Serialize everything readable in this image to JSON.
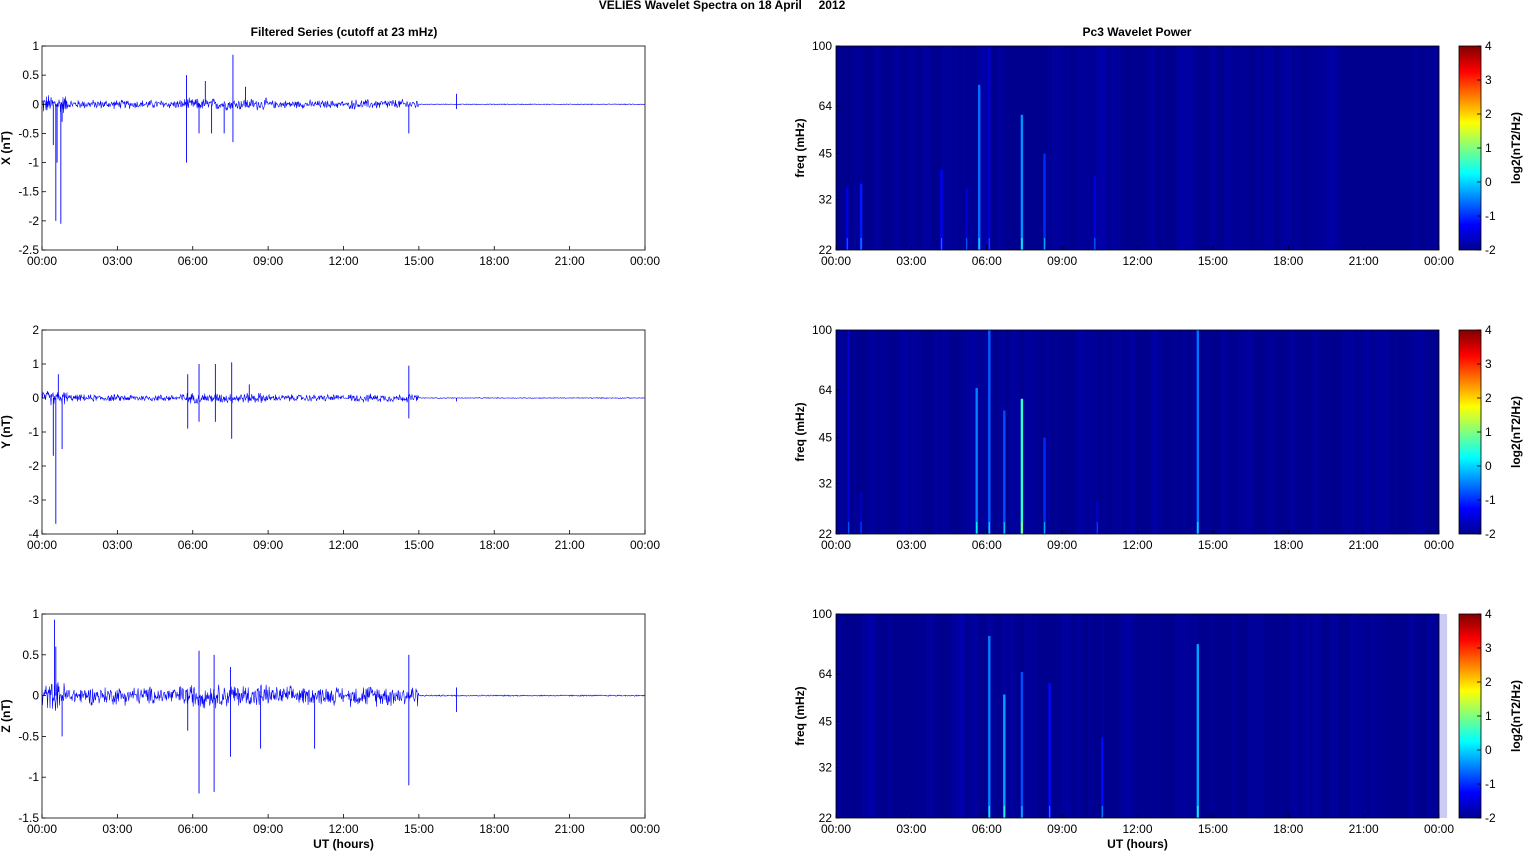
{
  "figure": {
    "title": "VELIES Wavelet Spectra on 18 April     2012",
    "left_title": "Filtered Series (cutoff at 23 mHz)",
    "right_title": "Pc3 Wavelet Power",
    "xlabel": "UT (hours)",
    "freq_label": "freq (mHz)",
    "colorbar_label": "log2(nT2/Hz)"
  },
  "colors": {
    "trace": "#0000ff",
    "spectrogram_bg": "#00008f",
    "axes": "#000000"
  },
  "chart_data": [
    {
      "type": "line",
      "panel": "X",
      "ylabel": "X (nT)",
      "xlim": [
        0,
        24
      ],
      "ylim": [
        -2.5,
        1
      ],
      "yticks": [
        "-2.5",
        "-2",
        "-1.5",
        "-1",
        "-0.5",
        "0",
        "0.5",
        "1"
      ],
      "xticks": [
        "00:00",
        "03:00",
        "06:00",
        "09:00",
        "12:00",
        "15:00",
        "18:00",
        "21:00",
        "00:00"
      ],
      "grid": false,
      "noise_segments": [
        {
          "x0": 0.0,
          "x1": 1.0,
          "amp": 0.2
        },
        {
          "x0": 1.0,
          "x1": 5.5,
          "amp": 0.09
        },
        {
          "x0": 5.5,
          "x1": 9.0,
          "amp": 0.12
        },
        {
          "x0": 9.0,
          "x1": 12.0,
          "amp": 0.08
        },
        {
          "x0": 12.0,
          "x1": 12.2,
          "amp": 0.03
        },
        {
          "x0": 12.2,
          "x1": 15.0,
          "amp": 0.1
        },
        {
          "x0": 15.0,
          "x1": 24.0,
          "amp": 0.008
        }
      ],
      "spikes": [
        [
          0.45,
          -0.7
        ],
        [
          0.55,
          -2.0
        ],
        [
          0.6,
          -1.0
        ],
        [
          0.75,
          -2.05
        ],
        [
          0.8,
          -0.3
        ],
        [
          5.75,
          -1.0
        ],
        [
          5.75,
          0.5
        ],
        [
          6.25,
          -0.5
        ],
        [
          6.5,
          0.4
        ],
        [
          6.75,
          -0.5
        ],
        [
          7.25,
          -0.5
        ],
        [
          7.6,
          0.85
        ],
        [
          7.6,
          -0.65
        ],
        [
          8.1,
          0.3
        ],
        [
          14.6,
          -0.5
        ],
        [
          16.5,
          0.18
        ],
        [
          16.5,
          -0.08
        ]
      ]
    },
    {
      "type": "line",
      "panel": "Y",
      "ylabel": "Y (nT)",
      "xlim": [
        0,
        24
      ],
      "ylim": [
        -4,
        2
      ],
      "yticks": [
        "-4",
        "-3",
        "-2",
        "-1",
        "0",
        "1",
        "2"
      ],
      "xticks": [
        "00:00",
        "03:00",
        "06:00",
        "09:00",
        "12:00",
        "15:00",
        "18:00",
        "21:00",
        "00:00"
      ],
      "grid": false,
      "noise_segments": [
        {
          "x0": 0.0,
          "x1": 1.0,
          "amp": 0.25
        },
        {
          "x0": 1.0,
          "x1": 5.5,
          "amp": 0.12
        },
        {
          "x0": 5.5,
          "x1": 9.0,
          "amp": 0.18
        },
        {
          "x0": 9.0,
          "x1": 12.0,
          "amp": 0.12
        },
        {
          "x0": 12.0,
          "x1": 12.2,
          "amp": 0.03
        },
        {
          "x0": 12.2,
          "x1": 15.0,
          "amp": 0.14
        },
        {
          "x0": 15.0,
          "x1": 24.0,
          "amp": 0.015
        }
      ],
      "spikes": [
        [
          0.45,
          -1.7
        ],
        [
          0.55,
          -3.7
        ],
        [
          0.65,
          0.7
        ],
        [
          0.8,
          -1.5
        ],
        [
          5.8,
          -0.9
        ],
        [
          5.8,
          0.7
        ],
        [
          6.25,
          1.0
        ],
        [
          6.25,
          -0.7
        ],
        [
          6.9,
          1.0
        ],
        [
          6.9,
          -0.7
        ],
        [
          7.55,
          1.05
        ],
        [
          7.55,
          -1.2
        ],
        [
          8.25,
          0.4
        ],
        [
          14.6,
          0.95
        ],
        [
          14.6,
          -0.6
        ],
        [
          16.5,
          -0.1
        ]
      ]
    },
    {
      "type": "line",
      "panel": "Z",
      "ylabel": "Z (nT)",
      "xlim": [
        0,
        24
      ],
      "ylim": [
        -1.5,
        1
      ],
      "yticks": [
        "-1.5",
        "-1",
        "-0.5",
        "0",
        "0.5",
        "1"
      ],
      "xticks": [
        "00:00",
        "03:00",
        "06:00",
        "09:00",
        "12:00",
        "15:00",
        "18:00",
        "21:00",
        "00:00"
      ],
      "grid": false,
      "noise_segments": [
        {
          "x0": 0.0,
          "x1": 1.0,
          "amp": 0.2
        },
        {
          "x0": 1.0,
          "x1": 5.5,
          "amp": 0.13
        },
        {
          "x0": 5.5,
          "x1": 9.0,
          "amp": 0.17
        },
        {
          "x0": 9.0,
          "x1": 12.0,
          "amp": 0.13
        },
        {
          "x0": 12.0,
          "x1": 12.2,
          "amp": 0.03
        },
        {
          "x0": 12.2,
          "x1": 15.0,
          "amp": 0.15
        },
        {
          "x0": 15.0,
          "x1": 24.0,
          "amp": 0.01
        }
      ],
      "spikes": [
        [
          0.5,
          0.93
        ],
        [
          0.55,
          0.6
        ],
        [
          0.8,
          -0.5
        ],
        [
          5.8,
          -0.43
        ],
        [
          6.25,
          -1.2
        ],
        [
          6.25,
          0.55
        ],
        [
          6.85,
          -1.18
        ],
        [
          6.85,
          0.5
        ],
        [
          7.5,
          -0.75
        ],
        [
          7.5,
          0.35
        ],
        [
          8.7,
          -0.65
        ],
        [
          10.85,
          -0.65
        ],
        [
          14.6,
          0.5
        ],
        [
          14.6,
          -1.1
        ],
        [
          16.5,
          0.1
        ],
        [
          16.5,
          -0.2
        ]
      ]
    },
    {
      "type": "heatmap",
      "panel": "X",
      "ylabel": "freq (mHz)",
      "xlim": [
        0,
        24
      ],
      "ylim": [
        22,
        100
      ],
      "yscale": "log",
      "yticks": [
        "22",
        "32",
        "45",
        "64",
        "100"
      ],
      "xticks": [
        "00:00",
        "03:00",
        "06:00",
        "09:00",
        "12:00",
        "15:00",
        "18:00",
        "21:00",
        "00:00"
      ],
      "clim": [
        -2,
        4
      ],
      "colorbar_ticks": [
        "-2",
        "-1",
        "0",
        "1",
        "2",
        "3",
        "4"
      ],
      "colorscale": "jet",
      "bursts": [
        [
          0.45,
          35,
          -1.4
        ],
        [
          1.0,
          36,
          -1.1
        ],
        [
          4.2,
          40,
          -1.3
        ],
        [
          5.2,
          35,
          -1.5
        ],
        [
          5.7,
          75,
          -0.6
        ],
        [
          6.1,
          100,
          -1.5
        ],
        [
          7.4,
          60,
          -0.4
        ],
        [
          8.3,
          45,
          -1.0
        ],
        [
          10.3,
          38,
          -1.4
        ]
      ]
    },
    {
      "type": "heatmap",
      "panel": "Y",
      "ylabel": "freq (mHz)",
      "xlim": [
        0,
        24
      ],
      "ylim": [
        22,
        100
      ],
      "yscale": "log",
      "yticks": [
        "22",
        "32",
        "45",
        "64",
        "100"
      ],
      "xticks": [
        "00:00",
        "03:00",
        "06:00",
        "09:00",
        "12:00",
        "15:00",
        "18:00",
        "21:00",
        "00:00"
      ],
      "clim": [
        -2,
        4
      ],
      "colorbar_ticks": [
        "-2",
        "-1",
        "0",
        "1",
        "2",
        "3",
        "4"
      ],
      "colorscale": "jet",
      "bursts": [
        [
          0.5,
          100,
          -1.5
        ],
        [
          1.0,
          30,
          -1.6
        ],
        [
          5.6,
          65,
          -0.5
        ],
        [
          6.1,
          100,
          -0.7
        ],
        [
          6.7,
          55,
          -0.8
        ],
        [
          7.4,
          60,
          0.5
        ],
        [
          8.3,
          45,
          -1.0
        ],
        [
          10.4,
          28,
          -1.6
        ],
        [
          14.4,
          100,
          -0.6
        ]
      ]
    },
    {
      "type": "heatmap",
      "panel": "Z",
      "ylabel": "freq (mHz)",
      "xlim": [
        0,
        24
      ],
      "ylim": [
        22,
        100
      ],
      "yscale": "log",
      "yticks": [
        "22",
        "32",
        "45",
        "64",
        "100"
      ],
      "xticks": [
        "00:00",
        "03:00",
        "06:00",
        "09:00",
        "12:00",
        "15:00",
        "18:00",
        "21:00",
        "00:00"
      ],
      "clim": [
        -2,
        4
      ],
      "colorbar_ticks": [
        "-2",
        "-1",
        "0",
        "1",
        "2",
        "3",
        "4"
      ],
      "colorscale": "jet",
      "bursts": [
        [
          6.1,
          85,
          -0.5
        ],
        [
          6.7,
          55,
          -0.3
        ],
        [
          7.4,
          65,
          -0.8
        ],
        [
          8.5,
          60,
          -1.2
        ],
        [
          10.6,
          40,
          -1.2
        ],
        [
          14.4,
          80,
          -0.3
        ]
      ]
    }
  ]
}
